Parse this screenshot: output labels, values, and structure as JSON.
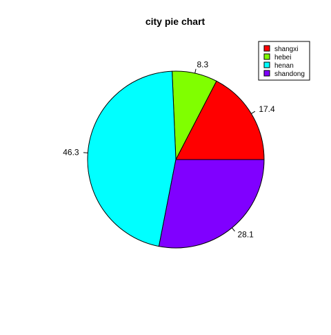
{
  "chart_data": {
    "type": "pie",
    "title": "city pie chart",
    "categories": [
      "shangxi",
      "hebei",
      "henan",
      "shandong"
    ],
    "values": [
      17.4,
      8.3,
      46.3,
      28.1
    ],
    "labels": [
      "17.4",
      "8.3",
      "46.3",
      "28.1"
    ],
    "colors": [
      "#FF0000",
      "#80FF00",
      "#00FFFF",
      "#8000FF"
    ],
    "start_angle_deg": 0,
    "direction": "counterclockwise",
    "legend_position": "top-right"
  }
}
